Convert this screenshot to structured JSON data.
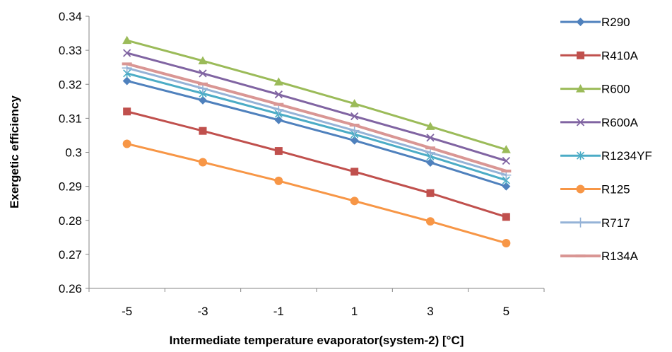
{
  "chart_data": {
    "type": "line",
    "title": "",
    "xlabel": "Intermediate temperature evaporator(system-2) [°C]",
    "ylabel": "Exergetic efficiency",
    "x": [
      -5,
      -3,
      -1,
      1,
      3,
      5
    ],
    "ylim": [
      0.26,
      0.34
    ],
    "yticks": [
      "0.26",
      "0.27",
      "0.28",
      "0.29",
      "0.3",
      "0.31",
      "0.32",
      "0.33",
      "0.34"
    ],
    "grid": false,
    "legend": "right",
    "series": [
      {
        "name": "R290",
        "color": "#4F81BD",
        "marker": "diamond",
        "values": [
          0.321,
          0.3153,
          0.3095,
          0.3035,
          0.297,
          0.29
        ]
      },
      {
        "name": "R410A",
        "color": "#C0504D",
        "marker": "square",
        "values": [
          0.312,
          0.3063,
          0.3004,
          0.2943,
          0.288,
          0.281
        ]
      },
      {
        "name": "R600",
        "color": "#9BBB59",
        "marker": "triangle",
        "values": [
          0.3329,
          0.3269,
          0.3207,
          0.3143,
          0.3076,
          0.3008
        ]
      },
      {
        "name": "R600A",
        "color": "#8064A2",
        "marker": "x",
        "values": [
          0.3292,
          0.3232,
          0.317,
          0.3106,
          0.3043,
          0.2975
        ]
      },
      {
        "name": "R1234YF",
        "color": "#4BACC6",
        "marker": "asterisk",
        "values": [
          0.3232,
          0.3173,
          0.3113,
          0.3053,
          0.2988,
          0.2918
        ]
      },
      {
        "name": "R125",
        "color": "#F79646",
        "marker": "circle",
        "values": [
          0.3025,
          0.2971,
          0.2916,
          0.2857,
          0.2797,
          0.2733
        ]
      },
      {
        "name": "R717",
        "color": "#95B3D7",
        "marker": "plus",
        "values": [
          0.3248,
          0.3188,
          0.3126,
          0.3064,
          0.2999,
          0.2933
        ]
      },
      {
        "name": "R134A",
        "color": "#D99694",
        "marker": "dash",
        "values": [
          0.326,
          0.3201,
          0.3141,
          0.308,
          0.3013,
          0.2945
        ]
      }
    ]
  }
}
